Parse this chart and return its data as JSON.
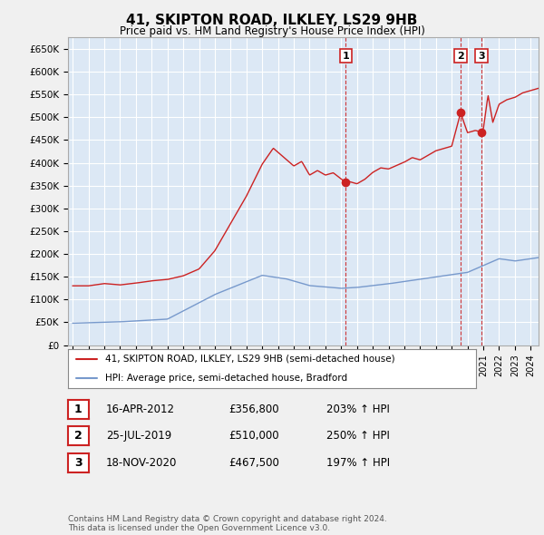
{
  "title": "41, SKIPTON ROAD, ILKLEY, LS29 9HB",
  "subtitle": "Price paid vs. HM Land Registry's House Price Index (HPI)",
  "ylabel_ticks": [
    "£0",
    "£50K",
    "£100K",
    "£150K",
    "£200K",
    "£250K",
    "£300K",
    "£350K",
    "£400K",
    "£450K",
    "£500K",
    "£550K",
    "£600K",
    "£650K"
  ],
  "ytick_values": [
    0,
    50000,
    100000,
    150000,
    200000,
    250000,
    300000,
    350000,
    400000,
    450000,
    500000,
    550000,
    600000,
    650000
  ],
  "ylim": [
    0,
    675000
  ],
  "hpi_color": "#7799cc",
  "price_color": "#cc2222",
  "bg_color": "#f0f0f0",
  "plot_bg_color": "#dce8f5",
  "grid_color": "#ffffff",
  "transactions": [
    {
      "date_label": "16-APR-2012",
      "date_num": 2012.29,
      "price": 356800,
      "pct": "203%",
      "label": "1"
    },
    {
      "date_label": "25-JUL-2019",
      "date_num": 2019.56,
      "price": 510000,
      "pct": "250%",
      "label": "2"
    },
    {
      "date_label": "18-NOV-2020",
      "date_num": 2020.88,
      "price": 467500,
      "pct": "197%",
      "label": "3"
    }
  ],
  "legend_price_label": "41, SKIPTON ROAD, ILKLEY, LS29 9HB (semi-detached house)",
  "legend_hpi_label": "HPI: Average price, semi-detached house, Bradford",
  "footer": "Contains HM Land Registry data © Crown copyright and database right 2024.\nThis data is licensed under the Open Government Licence v3.0.",
  "xmin": 1995,
  "xmax": 2025
}
